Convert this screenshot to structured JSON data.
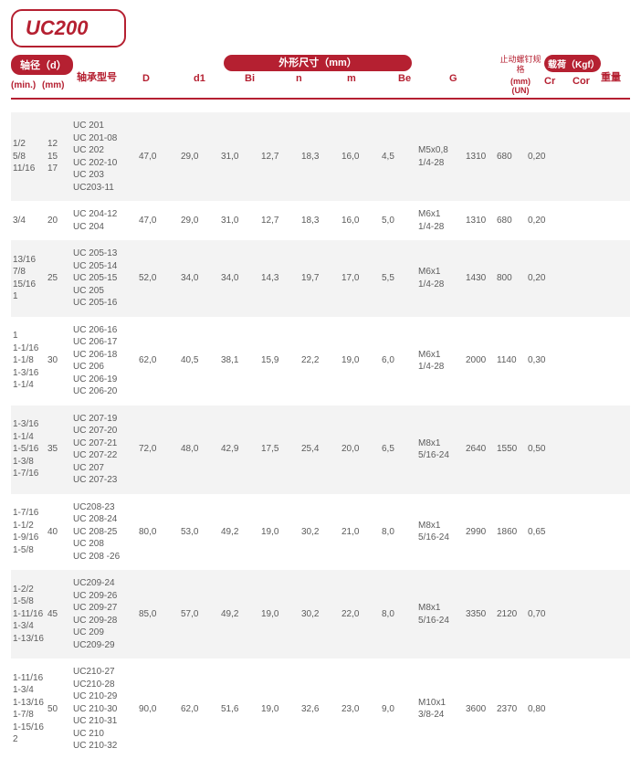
{
  "title": "UC200",
  "colors": {
    "brand": "#b52031",
    "text": "#5b5b5b",
    "alt_row": "#f3f3f3",
    "bg": "#ffffff"
  },
  "header": {
    "shaft_d": "轴径（d）",
    "min": "(min.)",
    "mm": "(mm)",
    "model": "轴承型号",
    "dims": "外形尺寸（mm）",
    "D": "D",
    "d1": "d1",
    "Bi": "Bi",
    "n": "n",
    "m": "m",
    "Be": "Be",
    "G": "G",
    "screw": "止动螺钉规格",
    "UN": "(mm)\n(UN)",
    "load": "载荷（Kgf）",
    "Cr": "Cr",
    "Cor": "Cor",
    "weight": "重量"
  },
  "rows": [
    {
      "min": "1/2\n5/8\n11/16",
      "mm": "12\n15\n17",
      "model": "UC 201\nUC 201-08\nUC 202\nUC 202-10\nUC 203\nUC203-11",
      "D": "47,0",
      "d1": "29,0",
      "Bi": "31,0",
      "n": "12,7",
      "m": "18,3",
      "Be": "16,0",
      "G": "4,5",
      "UN": "M5x0,8\n1/4-28",
      "Cr": "1310",
      "Cor": "680",
      "W": "0,20"
    },
    {
      "min": "3/4",
      "mm": "20",
      "model": "UC 204-12\nUC 204",
      "D": "47,0",
      "d1": "29,0",
      "Bi": "31,0",
      "n": "12,7",
      "m": "18,3",
      "Be": "16,0",
      "G": "5,0",
      "UN": "M6x1\n1/4-28",
      "Cr": "1310",
      "Cor": "680",
      "W": "0,20"
    },
    {
      "min": "13/16\n7/8\n15/16\n1",
      "mm": "25",
      "model": "UC 205-13\nUC 205-14\nUC 205-15\nUC 205\nUC 205-16",
      "D": "52,0",
      "d1": "34,0",
      "Bi": "34,0",
      "n": "14,3",
      "m": "19,7",
      "Be": "17,0",
      "G": "5,5",
      "UN": "M6x1\n1/4-28",
      "Cr": "1430",
      "Cor": "800",
      "W": "0,20"
    },
    {
      "min": "1\n1-1/16\n1-1/8\n1-3/16\n1-1/4",
      "mm": "30",
      "model": "UC 206-16\nUC 206-17\nUC 206-18\nUC 206\nUC 206-19\nUC 206-20",
      "D": "62,0",
      "d1": "40,5",
      "Bi": "38,1",
      "n": "15,9",
      "m": "22,2",
      "Be": "19,0",
      "G": "6,0",
      "UN": "M6x1\n1/4-28",
      "Cr": "2000",
      "Cor": "1140",
      "W": "0,30"
    },
    {
      "min": "1-3/16\n1-1/4\n1-5/16\n1-3/8\n1-7/16",
      "mm": "35",
      "model": "UC 207-19\nUC 207-20\nUC 207-21\nUC 207-22\nUC 207\nUC 207-23",
      "D": "72,0",
      "d1": "48,0",
      "Bi": "42,9",
      "n": "17,5",
      "m": "25,4",
      "Be": "20,0",
      "G": "6,5",
      "UN": "M8x1\n5/16-24",
      "Cr": "2640",
      "Cor": "1550",
      "W": "0,50"
    },
    {
      "min": "1-7/16\n1-1/2\n1-9/16\n1-5/8",
      "mm": "40",
      "model": "UC208-23\nUC 208-24\nUC 208-25\nUC 208\nUC 208 -26",
      "D": "80,0",
      "d1": "53,0",
      "Bi": "49,2",
      "n": "19,0",
      "m": "30,2",
      "Be": "21,0",
      "G": "8,0",
      "UN": "M8x1\n5/16-24",
      "Cr": "2990",
      "Cor": "1860",
      "W": "0,65"
    },
    {
      "min": "1-2/2\n1-5/8\n1-11/16\n1-3/4\n1-13/16",
      "mm": "45",
      "model": "UC209-24\nUC 209-26\nUC 209-27\nUC 209-28\nUC 209\nUC209-29",
      "D": "85,0",
      "d1": "57,0",
      "Bi": "49,2",
      "n": "19,0",
      "m": "30,2",
      "Be": "22,0",
      "G": "8,0",
      "UN": "M8x1\n5/16-24",
      "Cr": "3350",
      "Cor": "2120",
      "W": "0,70"
    },
    {
      "min": "1-11/16\n1-3/4\n1-13/16\n1-7/8\n1-15/16\n2",
      "mm": "50",
      "model": "UC210-27\nUC210-28\nUC 210-29\nUC 210-30\nUC 210-31\nUC 210\nUC 210-32",
      "D": "90,0",
      "d1": "62,0",
      "Bi": "51,6",
      "n": "19,0",
      "m": "32,6",
      "Be": "23,0",
      "G": "9,0",
      "UN": "M10x1\n3/8-24",
      "Cr": "3600",
      "Cor": "2370",
      "W": "0,80"
    }
  ]
}
